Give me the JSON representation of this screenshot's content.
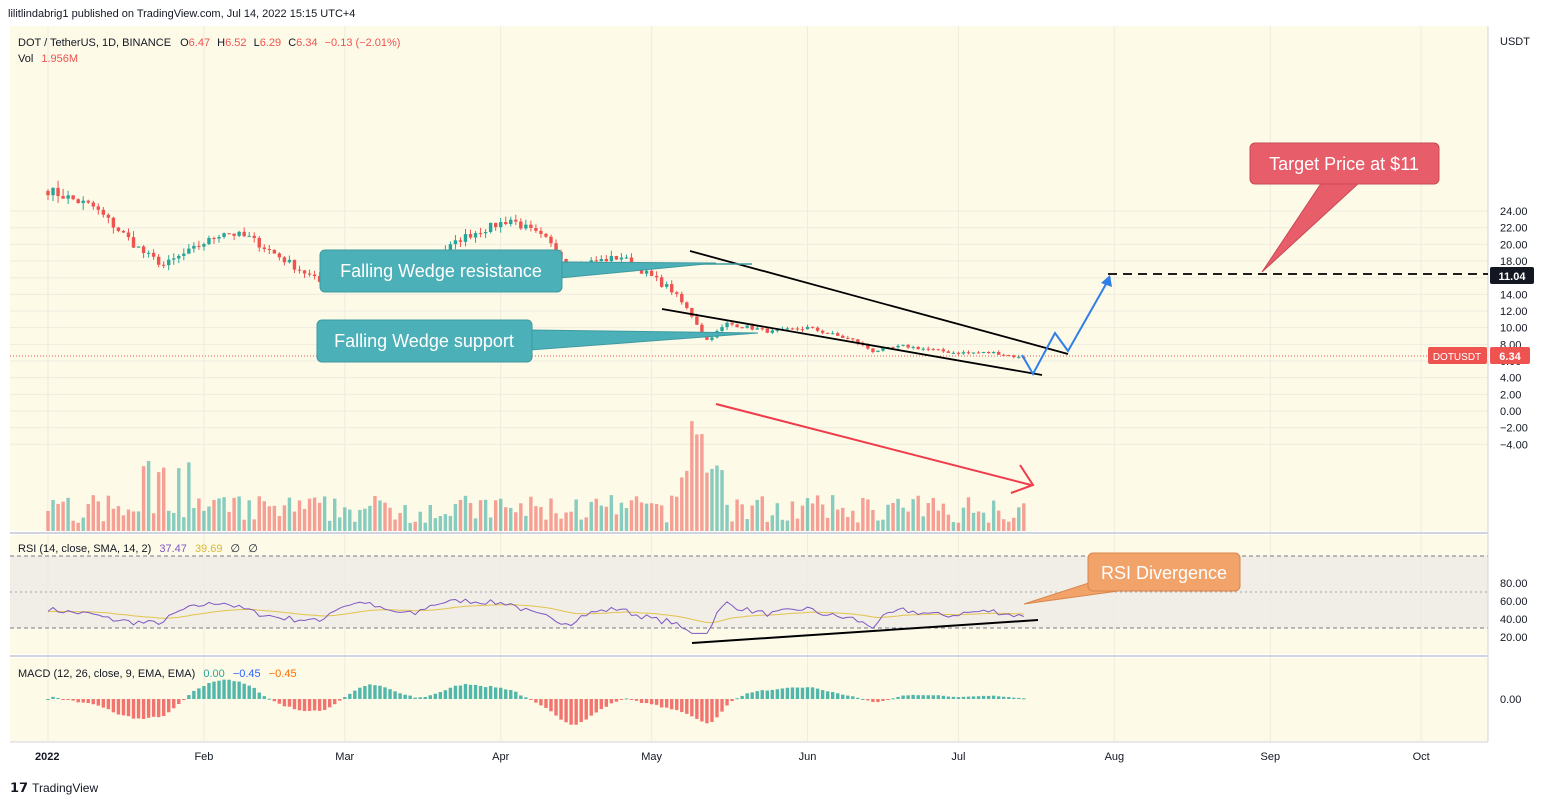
{
  "header": {
    "publisher_line": "lilitlindabrig1 published on TradingView.com, Jul 14, 2022 15:15 UTC+4"
  },
  "legend": {
    "symbol": "DOT / TetherUS, 1D, BINANCE",
    "o_label": "O",
    "o_value": "6.47",
    "h_label": "H",
    "h_value": "6.52",
    "l_label": "L",
    "l_value": "6.29",
    "c_label": "C",
    "c_value": "6.34",
    "change": "−0.13 (−2.01%)",
    "vol_label": "Vol",
    "vol_value": "1.956M",
    "rsi_label": "RSI (14, close, SMA, 14, 2)",
    "rsi_value": "37.47",
    "rsi_ma_value": "39.69",
    "rsi_extra1": "∅",
    "rsi_extra2": "∅",
    "macd_label": "MACD (12, 26, close, 9, EMA, EMA)",
    "macd_v1": "0.00",
    "macd_v2": "−0.45",
    "macd_v3": "−0.45"
  },
  "currency": "USDT",
  "price_badge": {
    "symbol": "DOTUSDT",
    "value": "6.34"
  },
  "target_badge": {
    "value": "11.04"
  },
  "annotations": {
    "wedge_resistance": "Falling Wedge resistance",
    "wedge_support": "Falling Wedge support",
    "target": "Target Price at $11",
    "rsi_divergence": "RSI Divergence"
  },
  "footer": {
    "brand": "TradingView"
  },
  "colors": {
    "up": "#26a69a",
    "down": "#ef5350",
    "teal_callout": "#4cb0b8",
    "red_callout": "#e85d6a",
    "orange_callout": "#f2a36a",
    "blue_path": "#2f7fe8",
    "rsi_line": "#7e57c2",
    "rsi_ma": "#e2c34d",
    "background": "#fdfae8"
  },
  "chart_data": {
    "type": "candlestick",
    "symbol": "DOT / TetherUS",
    "interval": "1D",
    "exchange": "BINANCE",
    "x_tick_labels": [
      "2022",
      "Feb",
      "Mar",
      "Apr",
      "May",
      "Jun",
      "Jul",
      "Aug",
      "Sep",
      "Oct"
    ],
    "price_axis_ticks": [
      "24.00",
      "22.00",
      "20.00",
      "18.00",
      "16.00",
      "14.00",
      "12.00",
      "10.00",
      "8.00",
      "6.00",
      "4.00",
      "2.00",
      "0.00",
      "−2.00",
      "−4.00"
    ],
    "rsi_axis_ticks": [
      "80.00",
      "60.00",
      "40.00",
      "20.00"
    ],
    "macd_axis_ticks": [
      "0.00"
    ],
    "price_anchors": [
      {
        "date": "2022-01-01",
        "close": 26.5
      },
      {
        "date": "2022-01-10",
        "close": 24.5
      },
      {
        "date": "2022-01-20",
        "close": 19.0
      },
      {
        "date": "2022-01-24",
        "close": 17.5
      },
      {
        "date": "2022-02-05",
        "close": 21.5
      },
      {
        "date": "2022-02-10",
        "close": 20.8
      },
      {
        "date": "2022-02-20",
        "close": 17.0
      },
      {
        "date": "2022-02-24",
        "close": 15.5
      },
      {
        "date": "2022-03-05",
        "close": 18.5
      },
      {
        "date": "2022-03-15",
        "close": 17.0
      },
      {
        "date": "2022-03-25",
        "close": 21.0
      },
      {
        "date": "2022-04-03",
        "close": 23.0
      },
      {
        "date": "2022-04-10",
        "close": 20.5
      },
      {
        "date": "2022-04-15",
        "close": 17.5
      },
      {
        "date": "2022-04-25",
        "close": 18.5
      },
      {
        "date": "2022-05-05",
        "close": 14.5
      },
      {
        "date": "2022-05-09",
        "close": 11.5
      },
      {
        "date": "2022-05-12",
        "close": 8.5
      },
      {
        "date": "2022-05-16",
        "close": 10.5
      },
      {
        "date": "2022-05-25",
        "close": 9.5
      },
      {
        "date": "2022-06-01",
        "close": 10.0
      },
      {
        "date": "2022-06-10",
        "close": 8.5
      },
      {
        "date": "2022-06-14",
        "close": 7.2
      },
      {
        "date": "2022-06-20",
        "close": 7.8
      },
      {
        "date": "2022-06-30",
        "close": 7.0
      },
      {
        "date": "2022-07-08",
        "close": 7.0
      },
      {
        "date": "2022-07-14",
        "close": 6.34
      }
    ],
    "last": {
      "open": 6.47,
      "high": 6.52,
      "low": 6.29,
      "close": 6.34,
      "change": -0.13,
      "change_pct": -2.01
    },
    "volume_last": "1.956M",
    "rsi": {
      "length": 14,
      "value": 37.47,
      "ma": 39.69,
      "upper_band": 70,
      "lower_band": 30
    },
    "macd": {
      "fast": 12,
      "slow": 26,
      "signal": 9,
      "values": [
        0.0,
        -0.45,
        -0.45
      ]
    },
    "target_price": 11.04,
    "current_price": 6.34
  }
}
